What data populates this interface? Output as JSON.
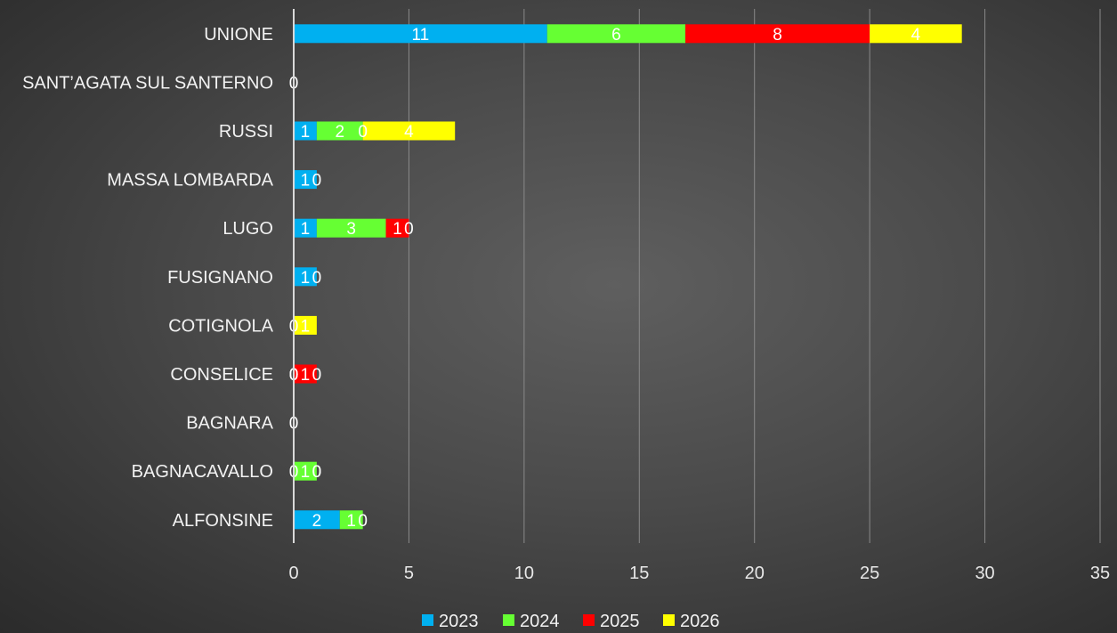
{
  "chart_data": {
    "type": "bar",
    "orientation": "horizontal",
    "stacked": true,
    "categories": [
      "UNIONE",
      "SANT’AGATA SUL SANTERNO",
      "RUSSI",
      "MASSA LOMBARDA",
      "LUGO",
      "FUSIGNANO",
      "COTIGNOLA",
      "CONSELICE",
      "BAGNARA",
      "BAGNACAVALLO",
      "ALFONSINE"
    ],
    "series": [
      {
        "name": "2023",
        "color": "#00b0f0",
        "values": [
          11,
          0,
          1,
          1,
          1,
          1,
          0,
          0,
          0,
          0,
          2
        ]
      },
      {
        "name": "2024",
        "color": "#66ff33",
        "values": [
          6,
          null,
          2,
          null,
          3,
          null,
          null,
          0,
          null,
          1,
          1
        ]
      },
      {
        "name": "2025",
        "color": "#ff0000",
        "values": [
          8,
          null,
          0,
          0,
          1,
          0,
          null,
          1,
          null,
          0,
          0
        ]
      },
      {
        "name": "2026",
        "color": "#ffff00",
        "values": [
          4,
          null,
          4,
          null,
          0,
          null,
          1,
          0,
          null,
          0,
          null
        ]
      }
    ],
    "xlim": [
      0,
      35
    ],
    "xticks": [
      "0",
      "5",
      "10",
      "15",
      "20",
      "25",
      "30",
      "35"
    ],
    "grid": true,
    "legend": "bottom",
    "title": "",
    "xlabel": "",
    "ylabel": ""
  }
}
